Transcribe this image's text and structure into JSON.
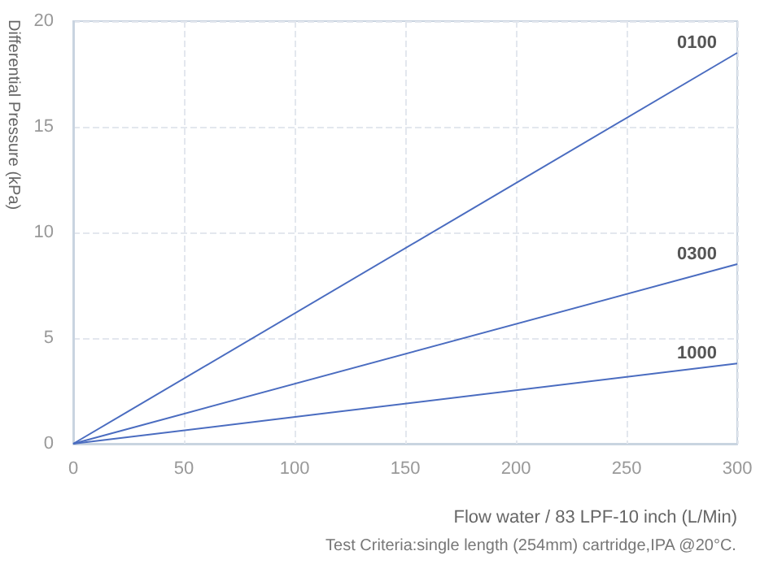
{
  "chart_data": {
    "type": "line",
    "xlabel": "Flow water / 83 LPF-10 inch (L/Min)",
    "ylabel": "Differential Pressure (kPa)",
    "annotations": [
      "Test Criteria:single length (254mm) cartridge,IPA @20°C."
    ],
    "x": [
      0,
      300
    ],
    "series": [
      {
        "name": "0100",
        "color": "#4a6cc0",
        "values": [
          0,
          18.5
        ]
      },
      {
        "name": "0300",
        "color": "#4a6cc0",
        "values": [
          0,
          8.5
        ]
      },
      {
        "name": "1000",
        "color": "#4a6cc0",
        "values": [
          0,
          3.8
        ]
      }
    ],
    "xlim": [
      0,
      300
    ],
    "xticks": [
      0,
      50,
      100,
      150,
      200,
      250,
      300
    ],
    "ylim": [
      0,
      20
    ],
    "yticks": [
      0,
      5,
      10,
      15,
      20
    ],
    "grid": true,
    "legend": false,
    "marker": "none",
    "line_style": "solid"
  }
}
